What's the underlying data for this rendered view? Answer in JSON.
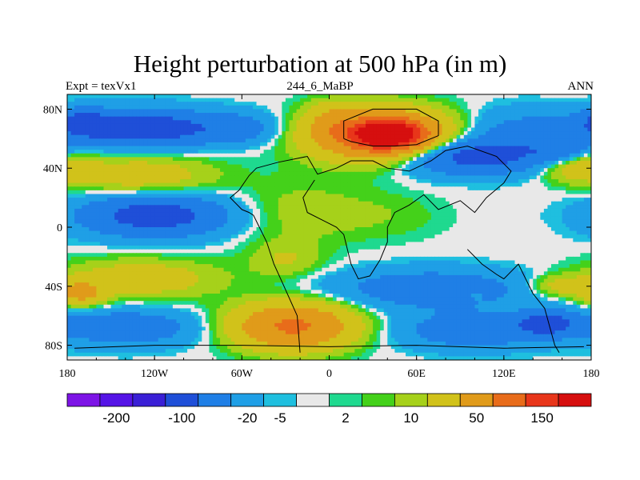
{
  "header": {
    "title": "Height perturbation at 500 hPa (in m)",
    "left": "Expt = texVx1",
    "center": "244_6_MaBP",
    "right": "ANN"
  },
  "colors": {
    "levels": [
      "#7d14e6",
      "#5514e6",
      "#3a1fd6",
      "#1f4fd8",
      "#1f7fe6",
      "#1f9fe6",
      "#1fbfdf",
      "#e8e8e8",
      "#1fd98f",
      "#44d11a",
      "#a6d11a",
      "#d1c21a",
      "#e09b1a",
      "#e86c1a",
      "#e8361a",
      "#d60f0f"
    ],
    "coastline": "#000000"
  },
  "chart_data": {
    "type": "heatmap",
    "title": "Height perturbation at 500 hPa (in m)",
    "subtitle_left": "Expt = texVx1",
    "subtitle_center": "244_6_MaBP",
    "subtitle_right": "ANN",
    "xlim": [
      -180,
      180
    ],
    "ylim": [
      -90,
      90
    ],
    "x_ticks": [
      {
        "value": -180,
        "label": "180"
      },
      {
        "value": -120,
        "label": "120W"
      },
      {
        "value": -60,
        "label": "60W"
      },
      {
        "value": 0,
        "label": "0"
      },
      {
        "value": 60,
        "label": "60E"
      },
      {
        "value": 120,
        "label": "120E"
      },
      {
        "value": 180,
        "label": "180"
      }
    ],
    "y_ticks": [
      {
        "value": 80,
        "label": "80N"
      },
      {
        "value": 40,
        "label": "40N"
      },
      {
        "value": 0,
        "label": "0"
      },
      {
        "value": -40,
        "label": "40S"
      },
      {
        "value": -80,
        "label": "80S"
      }
    ],
    "colorbar_labels": [
      "-200",
      "-100",
      "-20",
      "-5",
      "2",
      "10",
      "50",
      "150"
    ],
    "blobs": [
      {
        "lon": -130,
        "lat": 67,
        "rlon": 55,
        "rlat": 12,
        "value": -80
      },
      {
        "lon": -60,
        "lat": 67,
        "rlon": 25,
        "rlat": 10,
        "value": -25
      },
      {
        "lon": -170,
        "lat": 72,
        "rlon": 15,
        "rlat": 8,
        "value": -40
      },
      {
        "lon": 35,
        "lat": 62,
        "rlon": 45,
        "rlat": 17,
        "value": 130
      },
      {
        "lon": 40,
        "lat": 63,
        "rlon": 22,
        "rlat": 9,
        "value": 220
      },
      {
        "lon": 0,
        "lat": 72,
        "rlon": 15,
        "rlat": 12,
        "value": 30
      },
      {
        "lon": 130,
        "lat": 65,
        "rlon": 40,
        "rlat": 15,
        "value": -25
      },
      {
        "lon": 95,
        "lat": 48,
        "rlon": 55,
        "rlat": 12,
        "value": -70
      },
      {
        "lon": 170,
        "lat": 42,
        "rlon": 25,
        "rlat": 10,
        "value": 40
      },
      {
        "lon": 160,
        "lat": 50,
        "rlon": 20,
        "rlat": 8,
        "value": -30
      },
      {
        "lon": -130,
        "lat": 35,
        "rlon": 50,
        "rlat": 13,
        "value": 35
      },
      {
        "lon": -120,
        "lat": 8,
        "rlon": 50,
        "rlat": 14,
        "value": -70
      },
      {
        "lon": -20,
        "lat": 10,
        "rlon": 45,
        "rlat": 22,
        "value": 15
      },
      {
        "lon": 40,
        "lat": 8,
        "rlon": 40,
        "rlat": 16,
        "value": 8
      },
      {
        "lon": 150,
        "lat": 10,
        "rlon": 30,
        "rlat": 25,
        "value": 0
      },
      {
        "lon": -130,
        "lat": -35,
        "rlon": 55,
        "rlat": 13,
        "value": 35
      },
      {
        "lon": -170,
        "lat": -45,
        "rlon": 15,
        "rlat": 8,
        "value": 60
      },
      {
        "lon": -30,
        "lat": -22,
        "rlon": 25,
        "rlat": 12,
        "value": 20
      },
      {
        "lon": 70,
        "lat": -42,
        "rlon": 65,
        "rlat": 13,
        "value": -40
      },
      {
        "lon": 100,
        "lat": -45,
        "rlon": 7,
        "rlat": 5,
        "value": 12
      },
      {
        "lon": 160,
        "lat": -40,
        "rlon": 20,
        "rlat": 7,
        "value": 30
      },
      {
        "lon": -140,
        "lat": -68,
        "rlon": 50,
        "rlat": 12,
        "value": -40
      },
      {
        "lon": -25,
        "lat": -67,
        "rlon": 40,
        "rlat": 15,
        "value": 110
      },
      {
        "lon": 100,
        "lat": -70,
        "rlon": 50,
        "rlat": 12,
        "value": -40
      },
      {
        "lon": 150,
        "lat": -65,
        "rlon": 20,
        "rlat": 8,
        "value": -60
      }
    ]
  }
}
